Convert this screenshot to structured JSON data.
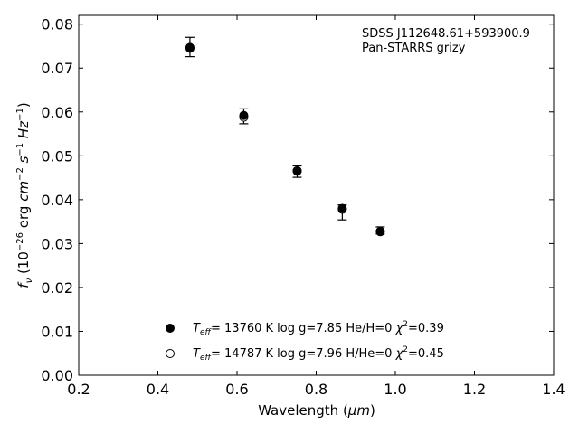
{
  "chart_data": {
    "type": "scatter",
    "xlabel": {
      "main": "Wavelength (",
      "unit": "μm",
      "close": ")"
    },
    "ylabel": {
      "f": "f",
      "nu": "ν",
      "open": " (10",
      "exp1": "−26",
      "erg": " erg ",
      "cm": "cm",
      "exp2": "−2",
      "s": " s",
      "exp3": "−1",
      "hz": " Hz",
      "exp4": "−1",
      "close": ")"
    },
    "xlim": [
      0.2,
      1.4
    ],
    "ylim": [
      0.0,
      0.082
    ],
    "x_ticks": [
      0.2,
      0.4,
      0.6,
      0.8,
      1.0,
      1.2,
      1.4
    ],
    "x_tick_labels": [
      "0.2",
      "0.4",
      "0.6",
      "0.8",
      "1.0",
      "1.2",
      "1.4"
    ],
    "y_ticks": [
      0.0,
      0.01,
      0.02,
      0.03,
      0.04,
      0.05,
      0.06,
      0.07,
      0.08
    ],
    "y_tick_labels": [
      "0.00",
      "0.01",
      "0.02",
      "0.03",
      "0.04",
      "0.05",
      "0.06",
      "0.07",
      "0.08"
    ],
    "grid": false,
    "legend_position": "bottom-center",
    "annotations": [
      "SDSS J112648.61+593900.9",
      "Pan-STARRS grizy"
    ],
    "observed": {
      "x": [
        0.481,
        0.617,
        0.752,
        0.866,
        0.962
      ],
      "y": [
        0.0748,
        0.059,
        0.0464,
        0.0371,
        0.033
      ],
      "yerr": [
        0.0022,
        0.0017,
        0.0013,
        0.0017,
        0.0008
      ]
    },
    "series": [
      {
        "marker": "filled",
        "label": {
          "teff": "T",
          "eff": "eff",
          "text1": "= 13760 K  log g=7.85  He/H=0  ",
          "chi": "χ",
          "two": "2",
          "text2": "=0.39"
        },
        "x": [
          0.481,
          0.617,
          0.752,
          0.866,
          0.962
        ],
        "y": [
          0.0747,
          0.0592,
          0.0465,
          0.038,
          0.0327
        ]
      },
      {
        "marker": "open",
        "label": {
          "teff": "T",
          "eff": "eff",
          "text1": "= 14787 K  log g=7.96  H/He=0  ",
          "chi": "χ",
          "two": "2",
          "text2": "=0.45"
        },
        "x": [
          0.481,
          0.617,
          0.752,
          0.866,
          0.962
        ],
        "y": [
          0.0745,
          0.0588,
          0.0466,
          0.0378,
          0.0328
        ]
      }
    ]
  }
}
